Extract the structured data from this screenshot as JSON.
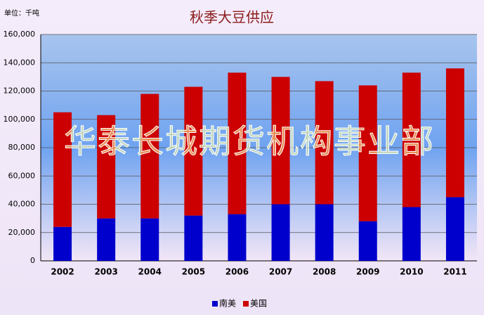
{
  "chart_data": {
    "type": "stacked_bar",
    "title": "秋季大豆供应",
    "unit_label": "单位：千吨",
    "watermark": "华泰长城期货机构事业部",
    "categories": [
      "2002",
      "2003",
      "2004",
      "2005",
      "2006",
      "2007",
      "2008",
      "2009",
      "2010",
      "2011"
    ],
    "series": [
      {
        "name": "南美",
        "color": "#0000cc",
        "values": [
          24000,
          30000,
          30000,
          32000,
          33000,
          40000,
          40000,
          28000,
          38000,
          45000
        ]
      },
      {
        "name": "美国",
        "color": "#cc0000",
        "values": [
          81000,
          73000,
          88000,
          91000,
          100000,
          90000,
          87000,
          96000,
          95000,
          91000
        ]
      }
    ],
    "ylim": [
      0,
      160000
    ],
    "yticks": [
      0,
      {
        "value": 20000,
        "label": "20,000"
      },
      {
        "value": 40000,
        "label": "40,000"
      },
      {
        "value": 60000,
        "label": "60,000"
      },
      {
        "value": 80000,
        "label": "80,000"
      },
      {
        "value": 100000,
        "label": "100,000"
      },
      {
        "value": 120000,
        "label": "120,000"
      },
      {
        "value": 140000,
        "label": "140,000"
      },
      {
        "value": 160000,
        "label": "160,000"
      }
    ],
    "grid": true,
    "legend": "bottom"
  }
}
